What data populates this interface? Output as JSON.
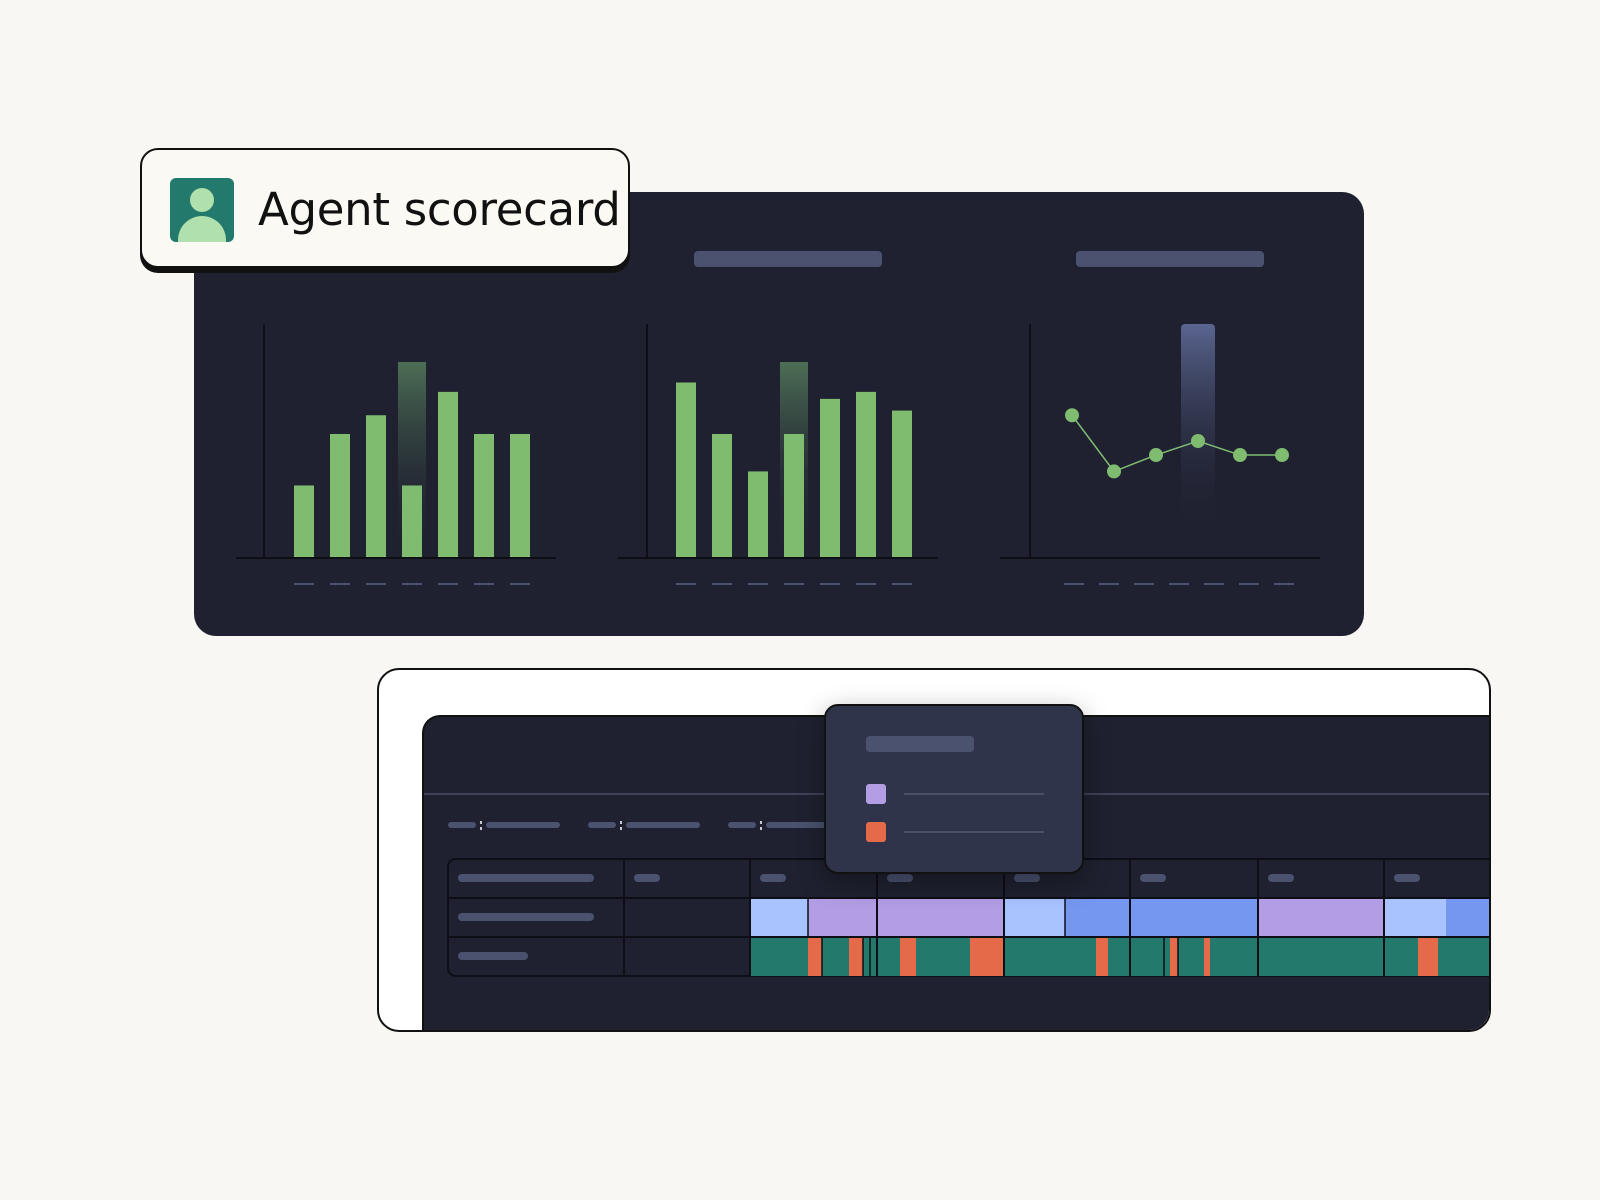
{
  "scorecard": {
    "title": "Agent scorecard",
    "icon": "user-avatar-icon"
  },
  "colors": {
    "panel": "#1f2130",
    "bar": "#7fbc70",
    "highlight_green": "#3f5f4a",
    "highlight_blue": "#5a6590",
    "placeholder": "#4a5270",
    "purple": "#b39de4",
    "light_blue": "#a8c3ff",
    "blue": "#7597ef",
    "teal": "#237a6c",
    "orange": "#e56a4a"
  },
  "chart_data": [
    {
      "type": "bar",
      "values": [
        31,
        53,
        61,
        31,
        71,
        53,
        53
      ],
      "highlight_index": 3,
      "ylim": [
        0,
        100
      ]
    },
    {
      "type": "bar",
      "values": [
        75,
        53,
        37,
        53,
        68,
        71,
        63
      ],
      "highlight_index": 3,
      "ylim": [
        0,
        100
      ]
    },
    {
      "type": "line",
      "values": [
        61,
        37,
        44,
        50,
        44,
        44
      ],
      "highlight_index": 3,
      "ylim": [
        0,
        100
      ]
    }
  ],
  "tooltip": {
    "legend": [
      {
        "color": "#b39de4"
      },
      {
        "color": "#e56a4a"
      }
    ]
  }
}
